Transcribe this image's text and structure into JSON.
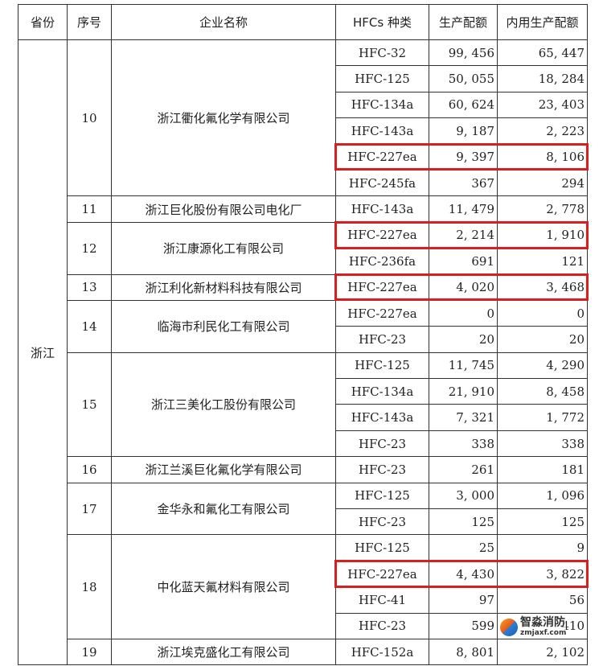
{
  "headers": [
    "省份",
    "序号",
    "企业名称",
    "HFCs 种类",
    "生产配额",
    "内用生产配额"
  ],
  "province": "浙江",
  "highlight_color": "#d81e1e",
  "companies": [
    {
      "no": "10",
      "name": "浙江衢化氟化学有限公司",
      "rows": [
        {
          "type": "HFC-32",
          "quota": "99, 456",
          "internal": "65, 447"
        },
        {
          "type": "HFC-125",
          "quota": "50, 055",
          "internal": "18, 284"
        },
        {
          "type": "HFC-134a",
          "quota": "60, 624",
          "internal": "23, 403"
        },
        {
          "type": "HFC-143a",
          "quota": "9, 187",
          "internal": "2, 223"
        },
        {
          "type": "HFC-227ea",
          "quota": "9, 397",
          "internal": "8, 106",
          "highlighted": true
        },
        {
          "type": "HFC-245fa",
          "quota": "367",
          "internal": "294"
        }
      ]
    },
    {
      "no": "11",
      "name": "浙江巨化股份有限公司电化厂",
      "rows": [
        {
          "type": "HFC-143a",
          "quota": "11, 479",
          "internal": "2, 778"
        }
      ]
    },
    {
      "no": "12",
      "name": "浙江康源化工有限公司",
      "rows": [
        {
          "type": "HFC-227ea",
          "quota": "2, 214",
          "internal": "1, 910",
          "highlighted": true
        },
        {
          "type": "HFC-236fa",
          "quota": "691",
          "internal": "121"
        }
      ]
    },
    {
      "no": "13",
      "name": "浙江利化新材料科技有限公司",
      "rows": [
        {
          "type": "HFC-227ea",
          "quota": "4, 020",
          "internal": "3, 468",
          "highlighted": true
        }
      ]
    },
    {
      "no": "14",
      "name": "临海市利民化工有限公司",
      "rows": [
        {
          "type": "HFC-227ea",
          "quota": "0",
          "internal": "0"
        },
        {
          "type": "HFC-23",
          "quota": "20",
          "internal": "20"
        }
      ]
    },
    {
      "no": "15",
      "name": "浙江三美化工股份有限公司",
      "rows": [
        {
          "type": "HFC-125",
          "quota": "11, 745",
          "internal": "4, 290"
        },
        {
          "type": "HFC-134a",
          "quota": "21, 910",
          "internal": "8, 458"
        },
        {
          "type": "HFC-143a",
          "quota": "7, 321",
          "internal": "1, 772"
        },
        {
          "type": "HFC-23",
          "quota": "338",
          "internal": "338"
        }
      ]
    },
    {
      "no": "16",
      "name": "浙江兰溪巨化氟化学有限公司",
      "rows": [
        {
          "type": "HFC-23",
          "quota": "261",
          "internal": "181"
        }
      ]
    },
    {
      "no": "17",
      "name": "金华永和氟化工有限公司",
      "rows": [
        {
          "type": "HFC-125",
          "quota": "3, 000",
          "internal": "1, 096"
        },
        {
          "type": "HFC-23",
          "quota": "125",
          "internal": "125"
        }
      ]
    },
    {
      "no": "18",
      "name": "中化蓝天氟材料有限公司",
      "rows": [
        {
          "type": "HFC-125",
          "quota": "25",
          "internal": "9"
        },
        {
          "type": "HFC-227ea",
          "quota": "4, 430",
          "internal": "3, 822",
          "highlighted": true
        },
        {
          "type": "HFC-41",
          "quota": "97",
          "internal": "56"
        },
        {
          "type": "HFC-23",
          "quota": "599",
          "internal": "410"
        }
      ]
    },
    {
      "no": "19",
      "name": "浙江埃克盛化工有限公司",
      "rows": [
        {
          "type": "HFC-152a",
          "quota": "8, 801",
          "internal": "2, 102"
        }
      ]
    }
  ],
  "watermark": {
    "name": "智淼消防",
    "url": "zmjaxf.com"
  }
}
